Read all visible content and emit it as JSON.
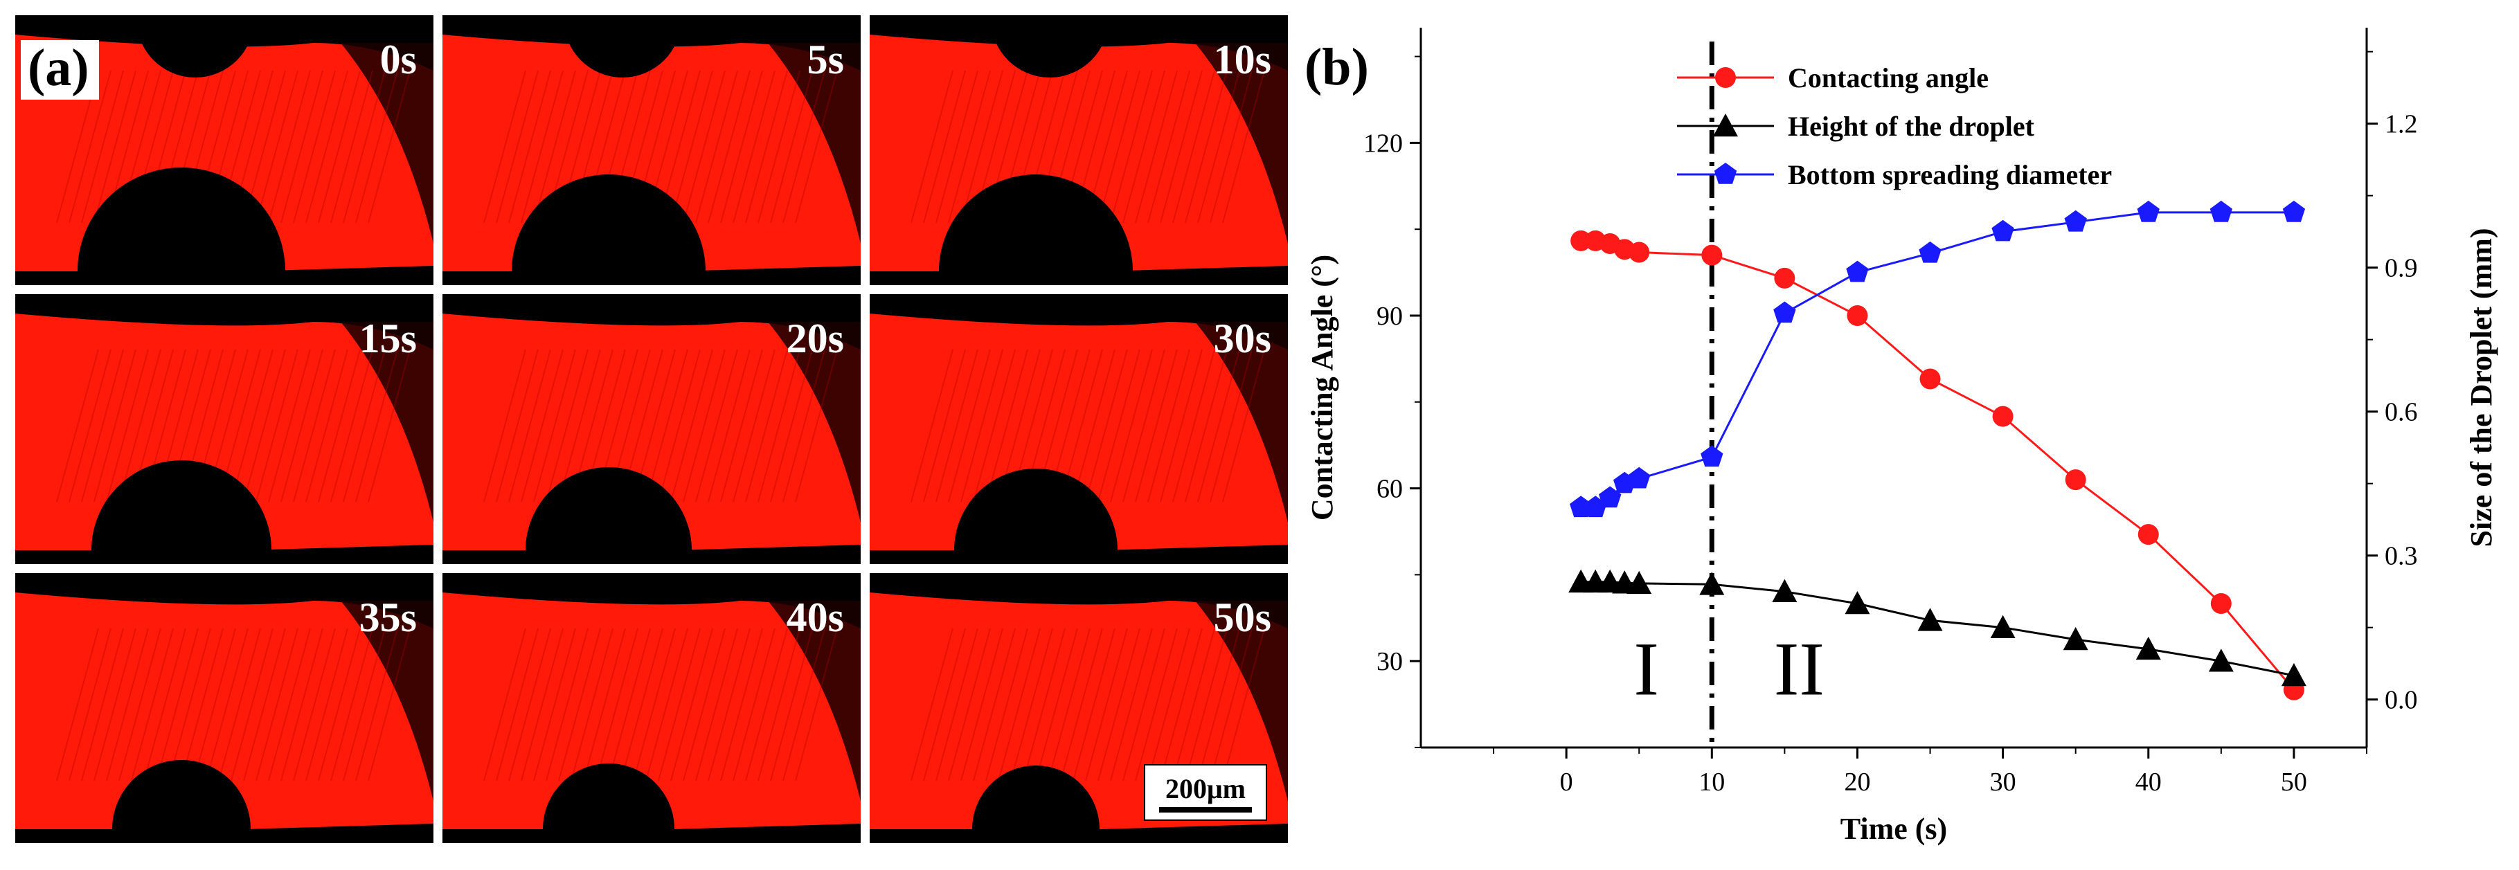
{
  "panel_a": {
    "label": "(a)",
    "time_labels": [
      "0s",
      "5s",
      "10s",
      "15s",
      "20s",
      "30s",
      "35s",
      "40s",
      "50s"
    ],
    "scale_bar": "200μm",
    "colors": {
      "substrate": "#ff1a0a",
      "background": "#000000"
    }
  },
  "chart_data": {
    "type": "line",
    "panel_label": "(b)",
    "xlabel": "Time (s)",
    "ylabel_left": "Contacting Angle (°)",
    "ylabel_right": "Size of the Droplet (mm)",
    "xlim": [
      -10,
      55
    ],
    "ylim_left": [
      15,
      140
    ],
    "ylim_right": [
      -0.1,
      1.4
    ],
    "x_ticks": [
      0,
      10,
      20,
      30,
      40,
      50
    ],
    "y_left_ticks": [
      30,
      60,
      90,
      120
    ],
    "y_right_ticks": [
      0.0,
      0.3,
      0.6,
      0.9,
      1.2
    ],
    "x_tick_labels": [
      "0",
      "10",
      "20",
      "30",
      "40",
      "50"
    ],
    "y_left_tick_labels": [
      "30",
      "60",
      "90",
      "120"
    ],
    "y_right_tick_labels": [
      "0.0",
      "0.3",
      "0.6",
      "0.9",
      "1.2"
    ],
    "divider_x": 10,
    "region_labels": [
      {
        "text": "I",
        "x": 5.5
      },
      {
        "text": "II",
        "x": 16
      }
    ],
    "legend_position": "top-right",
    "series": [
      {
        "name": "Contacting angle",
        "axis": "left",
        "color": "#ff1a1a",
        "marker": "circle",
        "x": [
          1,
          2,
          3,
          4,
          5,
          10,
          15,
          20,
          25,
          30,
          35,
          40,
          45,
          50
        ],
        "y": [
          103,
          103,
          102.5,
          101.5,
          101,
          100.5,
          96.5,
          90,
          79,
          72.5,
          61.5,
          52,
          40,
          25
        ]
      },
      {
        "name": "Height of the droplet",
        "axis": "right",
        "color": "#000000",
        "marker": "triangle",
        "x": [
          1,
          2,
          3,
          4,
          5,
          10,
          15,
          20,
          25,
          30,
          35,
          40,
          45,
          50
        ],
        "y": [
          0.245,
          0.245,
          0.245,
          0.243,
          0.242,
          0.24,
          0.225,
          0.2,
          0.165,
          0.15,
          0.125,
          0.105,
          0.08,
          0.05
        ]
      },
      {
        "name": "Bottom spreading diameter",
        "axis": "right",
        "color": "#1a1aff",
        "marker": "pentagon",
        "x": [
          1,
          2,
          3,
          4,
          5,
          10,
          15,
          20,
          25,
          30,
          35,
          40,
          45,
          50
        ],
        "y": [
          0.4,
          0.4,
          0.42,
          0.45,
          0.46,
          0.505,
          0.805,
          0.89,
          0.93,
          0.975,
          0.995,
          1.015,
          1.015,
          1.015
        ]
      }
    ]
  }
}
